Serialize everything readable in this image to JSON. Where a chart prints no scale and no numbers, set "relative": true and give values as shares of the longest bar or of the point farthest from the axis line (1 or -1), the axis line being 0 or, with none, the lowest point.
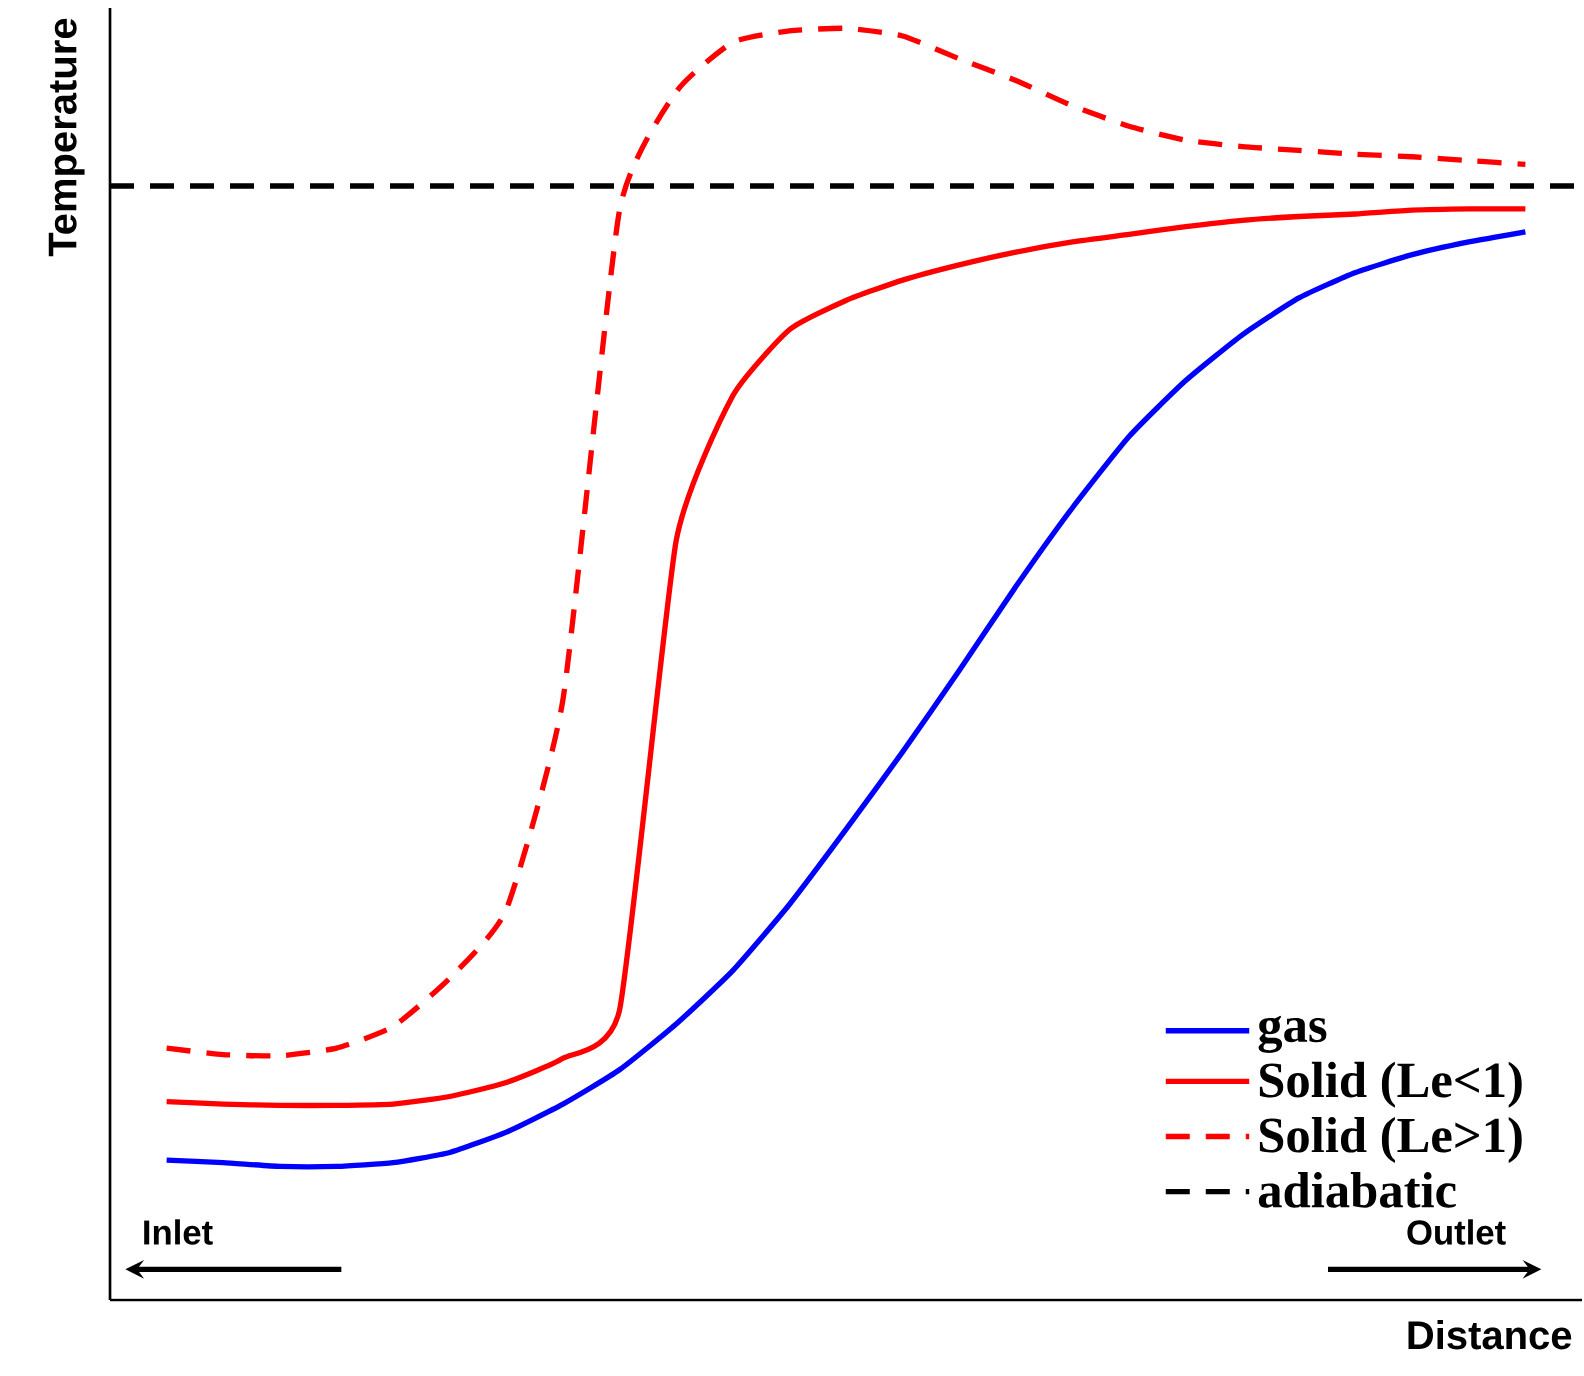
{
  "chart_data": {
    "type": "line",
    "relative": true,
    "xlabel": "Distance",
    "ylabel": "Temperature",
    "categories": [
      null,
      null,
      null,
      null,
      null,
      null,
      null,
      null,
      null,
      null,
      null,
      null,
      null,
      null,
      null,
      null,
      null,
      null,
      null,
      null,
      null,
      null,
      null,
      null,
      null,
      null,
      null
    ],
    "series": [
      {
        "name": "gas",
        "color": "#0000ff",
        "line_style": "solid",
        "values": [
          null,
          0.11,
          0.108,
          0.105,
          0.105,
          0.108,
          0.116,
          0.132,
          0.154,
          0.181,
          0.217,
          0.259,
          0.311,
          0.37,
          0.431,
          0.495,
          0.561,
          0.623,
          0.679,
          0.723,
          0.759,
          0.788,
          0.808,
          0.822,
          0.832,
          0.84,
          null
        ]
      },
      {
        "name": "Solid (Le<1)",
        "color": "#ff0000",
        "line_style": "solid",
        "values": [
          null,
          0.156,
          0.154,
          0.153,
          0.153,
          0.154,
          0.16,
          0.171,
          0.19,
          0.228,
          0.597,
          0.711,
          0.763,
          0.786,
          0.802,
          0.814,
          0.824,
          0.832,
          0.838,
          0.844,
          0.849,
          0.852,
          0.854,
          0.857,
          0.858,
          0.858,
          null
        ]
      },
      {
        "name": "Solid (Le>1)",
        "color": "#ff0000",
        "line_style": "dashed",
        "values": [
          null,
          0.198,
          0.193,
          0.192,
          0.198,
          0.215,
          0.253,
          0.307,
          0.472,
          0.857,
          0.95,
          0.989,
          0.998,
          1.0,
          0.994,
          0.976,
          0.959,
          0.939,
          0.923,
          0.912,
          0.907,
          0.904,
          0.901,
          0.899,
          0.896,
          0.893,
          null
        ]
      }
    ],
    "ref_lines": [
      {
        "axis": "y",
        "value": 0.876,
        "label": "adiabatic",
        "color": "#000000",
        "line_style": "dashed"
      }
    ],
    "annotations": [
      "Inlet",
      "Outlet"
    ],
    "legend": "bottom right"
  }
}
